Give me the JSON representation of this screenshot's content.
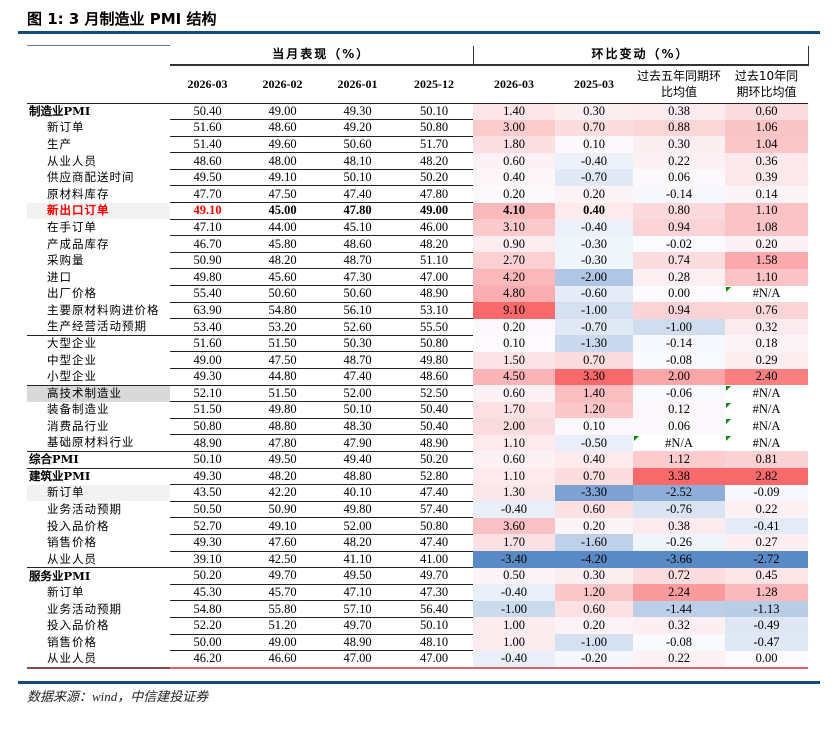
{
  "title": "图 1: 3 月制造业 PMI 结构",
  "header": {
    "group1": "当月表现（%）",
    "group2": "环比变动（%）",
    "columns": [
      "2026-03",
      "2026-02",
      "2026-01",
      "2025-12",
      "2026-03",
      "2025-03",
      "过去五年同期环比均值",
      "过去10年同期环比均值"
    ]
  },
  "colors": {
    "neg": "#5a8ac6",
    "mid": "#fcfcff",
    "pos": "#f8696b",
    "accent": "#0f4c7d",
    "highlight": "#ff0000"
  },
  "rows": [
    {
      "label": "制造业PMI",
      "level": "top",
      "values": [
        "50.40",
        "49.00",
        "49.30",
        "50.10",
        "1.40",
        "0.30",
        "0.38",
        "0.60"
      ]
    },
    {
      "label": "新订单",
      "values": [
        "51.60",
        "48.60",
        "49.20",
        "50.80",
        "3.00",
        "0.70",
        "0.88",
        "1.06"
      ]
    },
    {
      "label": "生产",
      "values": [
        "51.40",
        "49.60",
        "50.60",
        "51.70",
        "1.80",
        "0.10",
        "0.30",
        "1.04"
      ]
    },
    {
      "label": "从业人员",
      "values": [
        "48.60",
        "48.00",
        "48.10",
        "48.20",
        "0.60",
        "-0.40",
        "0.22",
        "0.36"
      ]
    },
    {
      "label": "供应商配送时间",
      "values": [
        "49.50",
        "49.10",
        "50.10",
        "50.20",
        "0.40",
        "-0.70",
        "0.06",
        "0.39"
      ]
    },
    {
      "label": "原材料库存",
      "values": [
        "47.70",
        "47.50",
        "47.40",
        "47.80",
        "0.20",
        "0.20",
        "-0.14",
        "0.14"
      ]
    },
    {
      "label": "新出口订单",
      "highlight": true,
      "values": [
        "49.10",
        "45.00",
        "47.80",
        "49.00",
        "4.10",
        "0.40",
        "0.80",
        "1.10"
      ]
    },
    {
      "label": "在手订单",
      "values": [
        "47.10",
        "44.00",
        "45.10",
        "46.00",
        "3.10",
        "-0.40",
        "0.94",
        "1.08"
      ]
    },
    {
      "label": "产成品库存",
      "values": [
        "46.70",
        "45.80",
        "48.60",
        "48.20",
        "0.90",
        "-0.30",
        "-0.02",
        "0.20"
      ]
    },
    {
      "label": "采购量",
      "values": [
        "50.90",
        "48.20",
        "48.70",
        "51.10",
        "2.70",
        "-0.30",
        "0.74",
        "1.58"
      ]
    },
    {
      "label": "进口",
      "values": [
        "49.80",
        "45.60",
        "47.30",
        "47.00",
        "4.20",
        "-2.00",
        "0.28",
        "1.10"
      ]
    },
    {
      "label": "出厂价格",
      "values": [
        "55.40",
        "50.60",
        "50.60",
        "48.90",
        "4.80",
        "-0.60",
        "0.00",
        "#N/A"
      ]
    },
    {
      "label": "主要原材料购进价格",
      "values": [
        "63.90",
        "54.80",
        "56.10",
        "53.10",
        "9.10",
        "-1.00",
        "0.94",
        "0.76"
      ]
    },
    {
      "label": "生产经营活动预期",
      "end": true,
      "values": [
        "53.40",
        "53.20",
        "52.60",
        "55.50",
        "0.20",
        "-0.70",
        "-1.00",
        "0.32"
      ]
    },
    {
      "label": "大型企业",
      "values": [
        "51.60",
        "51.50",
        "50.30",
        "50.80",
        "0.10",
        "-1.30",
        "-0.14",
        "0.18"
      ]
    },
    {
      "label": "中型企业",
      "values": [
        "49.00",
        "47.50",
        "48.70",
        "49.80",
        "1.50",
        "0.70",
        "-0.08",
        "0.29"
      ]
    },
    {
      "label": "小型企业",
      "end": true,
      "values": [
        "49.30",
        "44.80",
        "47.40",
        "48.60",
        "4.50",
        "3.30",
        "2.00",
        "2.40"
      ]
    },
    {
      "label": "高技术制造业",
      "shade": "#d9d9d9",
      "values": [
        "52.10",
        "51.50",
        "52.00",
        "52.50",
        "0.60",
        "1.40",
        "-0.06",
        "#N/A"
      ]
    },
    {
      "label": "装备制造业",
      "values": [
        "51.50",
        "49.80",
        "50.10",
        "50.40",
        "1.70",
        "1.20",
        "0.12",
        "#N/A"
      ]
    },
    {
      "label": "消费品行业",
      "values": [
        "50.80",
        "48.80",
        "48.30",
        "50.40",
        "2.00",
        "0.10",
        "0.06",
        "#N/A"
      ]
    },
    {
      "label": "基础原材料行业",
      "end": true,
      "values": [
        "48.90",
        "47.80",
        "47.90",
        "48.90",
        "1.10",
        "-0.50",
        "#N/A",
        "#N/A"
      ]
    },
    {
      "label": "综合PMI",
      "level": "top",
      "end": true,
      "values": [
        "50.10",
        "49.50",
        "49.40",
        "50.20",
        "0.60",
        "0.40",
        "1.12",
        "0.81"
      ]
    },
    {
      "label": "建筑业PMI",
      "level": "top",
      "values": [
        "49.30",
        "48.20",
        "48.80",
        "52.80",
        "1.10",
        "0.70",
        "3.38",
        "2.82"
      ]
    },
    {
      "label": "新订单",
      "shade": "#f2f2f2",
      "values": [
        "43.50",
        "42.20",
        "40.10",
        "47.40",
        "1.30",
        "-3.30",
        "-2.52",
        "-0.09"
      ]
    },
    {
      "label": "业务活动预期",
      "values": [
        "50.50",
        "50.90",
        "49.80",
        "57.40",
        "-0.40",
        "0.60",
        "-0.76",
        "0.22"
      ]
    },
    {
      "label": "投入品价格",
      "values": [
        "52.70",
        "49.10",
        "52.00",
        "50.80",
        "3.60",
        "0.20",
        "0.38",
        "-0.41"
      ]
    },
    {
      "label": "销售价格",
      "values": [
        "49.30",
        "47.60",
        "48.20",
        "47.40",
        "1.70",
        "-1.60",
        "-0.26",
        "0.27"
      ]
    },
    {
      "label": "从业人员",
      "end": true,
      "values": [
        "39.10",
        "42.50",
        "41.10",
        "41.00",
        "-3.40",
        "-4.20",
        "-3.66",
        "-2.72"
      ]
    },
    {
      "label": "服务业PMI",
      "level": "top",
      "values": [
        "50.20",
        "49.70",
        "49.50",
        "49.70",
        "0.50",
        "0.30",
        "0.72",
        "0.45"
      ]
    },
    {
      "label": "新订单",
      "values": [
        "45.30",
        "45.70",
        "47.10",
        "47.30",
        "-0.40",
        "1.20",
        "2.24",
        "1.28"
      ]
    },
    {
      "label": "业务活动预期",
      "values": [
        "54.80",
        "55.80",
        "57.10",
        "56.40",
        "-1.00",
        "0.60",
        "-1.44",
        "-1.13"
      ]
    },
    {
      "label": "投入品价格",
      "values": [
        "52.20",
        "51.20",
        "49.70",
        "50.10",
        "1.00",
        "0.20",
        "0.32",
        "-0.49"
      ]
    },
    {
      "label": "销售价格",
      "values": [
        "50.00",
        "49.00",
        "48.90",
        "48.10",
        "1.00",
        "-1.00",
        "-0.08",
        "-0.47"
      ]
    },
    {
      "label": "从业人员",
      "values": [
        "46.20",
        "46.60",
        "47.00",
        "47.00",
        "-0.40",
        "-0.20",
        "0.22",
        "0.00"
      ]
    }
  ],
  "source": "数据来源：wind，中信建投证券"
}
